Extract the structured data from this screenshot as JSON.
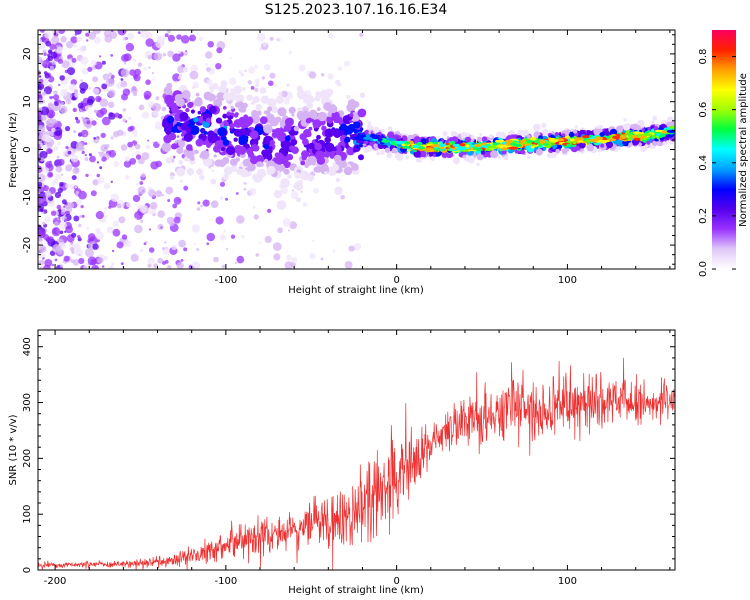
{
  "figure_title": "S125.2023.107.16.16.E34",
  "chart_data": [
    {
      "type": "heatmap",
      "title": "S125.2023.107.16.16.E34",
      "xlabel": "Height of straight line (km)",
      "ylabel": "Frequency (Hz)",
      "xlim": [
        -210,
        163
      ],
      "ylim": [
        -25,
        25
      ],
      "x_ticks": [
        -200,
        -100,
        0,
        100
      ],
      "y_ticks": [
        -20,
        -10,
        0,
        10,
        20
      ],
      "x_tick_labels": [
        "-200",
        "-100",
        "0",
        "100"
      ],
      "y_tick_labels": [
        "-20",
        "-10",
        "0",
        "10",
        "20"
      ],
      "colorbar": {
        "label": "Normalized spectral amplitude",
        "range": [
          0,
          0.9
        ],
        "ticks": [
          0.0,
          0.2,
          0.4,
          0.6,
          0.8
        ],
        "tick_labels": [
          "0.0",
          "0.2",
          "0.4",
          "0.6",
          "0.8"
        ],
        "colormap": [
          "#ffffff",
          "#e0c8f8",
          "#9933ff",
          "#5500ee",
          "#0000ff",
          "#00a0ff",
          "#00ffff",
          "#00ff40",
          "#a0ff00",
          "#ffff00",
          "#ffa000",
          "#ff2000",
          "#ff0060"
        ]
      },
      "ridge": {
        "description_free": true,
        "x": [
          -130,
          -110,
          -90,
          -70,
          -50,
          -30,
          -10,
          10,
          30,
          50,
          70,
          90,
          110,
          130,
          150,
          163
        ],
        "frequency_center": [
          6,
          5,
          3,
          1,
          2,
          3,
          2,
          0.5,
          0.5,
          0.5,
          1,
          1.5,
          2,
          2.5,
          3,
          4
        ],
        "peak_amplitude": [
          0.35,
          0.4,
          0.35,
          0.3,
          0.3,
          0.35,
          0.5,
          0.85,
          0.8,
          0.75,
          0.8,
          0.85,
          0.8,
          0.85,
          0.8,
          0.6
        ]
      }
    },
    {
      "type": "line",
      "xlabel": "Height of straight line (km)",
      "ylabel": "SNR (10 * v/v)",
      "xlim": [
        -210,
        163
      ],
      "ylim": [
        0,
        430
      ],
      "x_ticks": [
        -200,
        -100,
        0,
        100
      ],
      "y_ticks": [
        0,
        100,
        200,
        300,
        400
      ],
      "x_tick_labels": [
        "-200",
        "-100",
        "0",
        "100"
      ],
      "y_tick_labels": [
        "0",
        "100",
        "200",
        "300",
        "400"
      ],
      "line_color": "#ee3030",
      "series": [
        {
          "name": "SNR",
          "x": [
            -210,
            -180,
            -150,
            -130,
            -110,
            -90,
            -70,
            -50,
            -30,
            -15,
            -5,
            5,
            15,
            25,
            40,
            60,
            80,
            100,
            120,
            140,
            163
          ],
          "y_mean": [
            8,
            10,
            12,
            18,
            35,
            55,
            65,
            75,
            95,
            130,
            160,
            170,
            210,
            240,
            270,
            280,
            290,
            295,
            300,
            300,
            300
          ],
          "y_spread": [
            5,
            6,
            8,
            12,
            22,
            30,
            35,
            40,
            50,
            70,
            80,
            70,
            45,
            40,
            40,
            45,
            60,
            55,
            50,
            40,
            35
          ]
        }
      ]
    }
  ]
}
